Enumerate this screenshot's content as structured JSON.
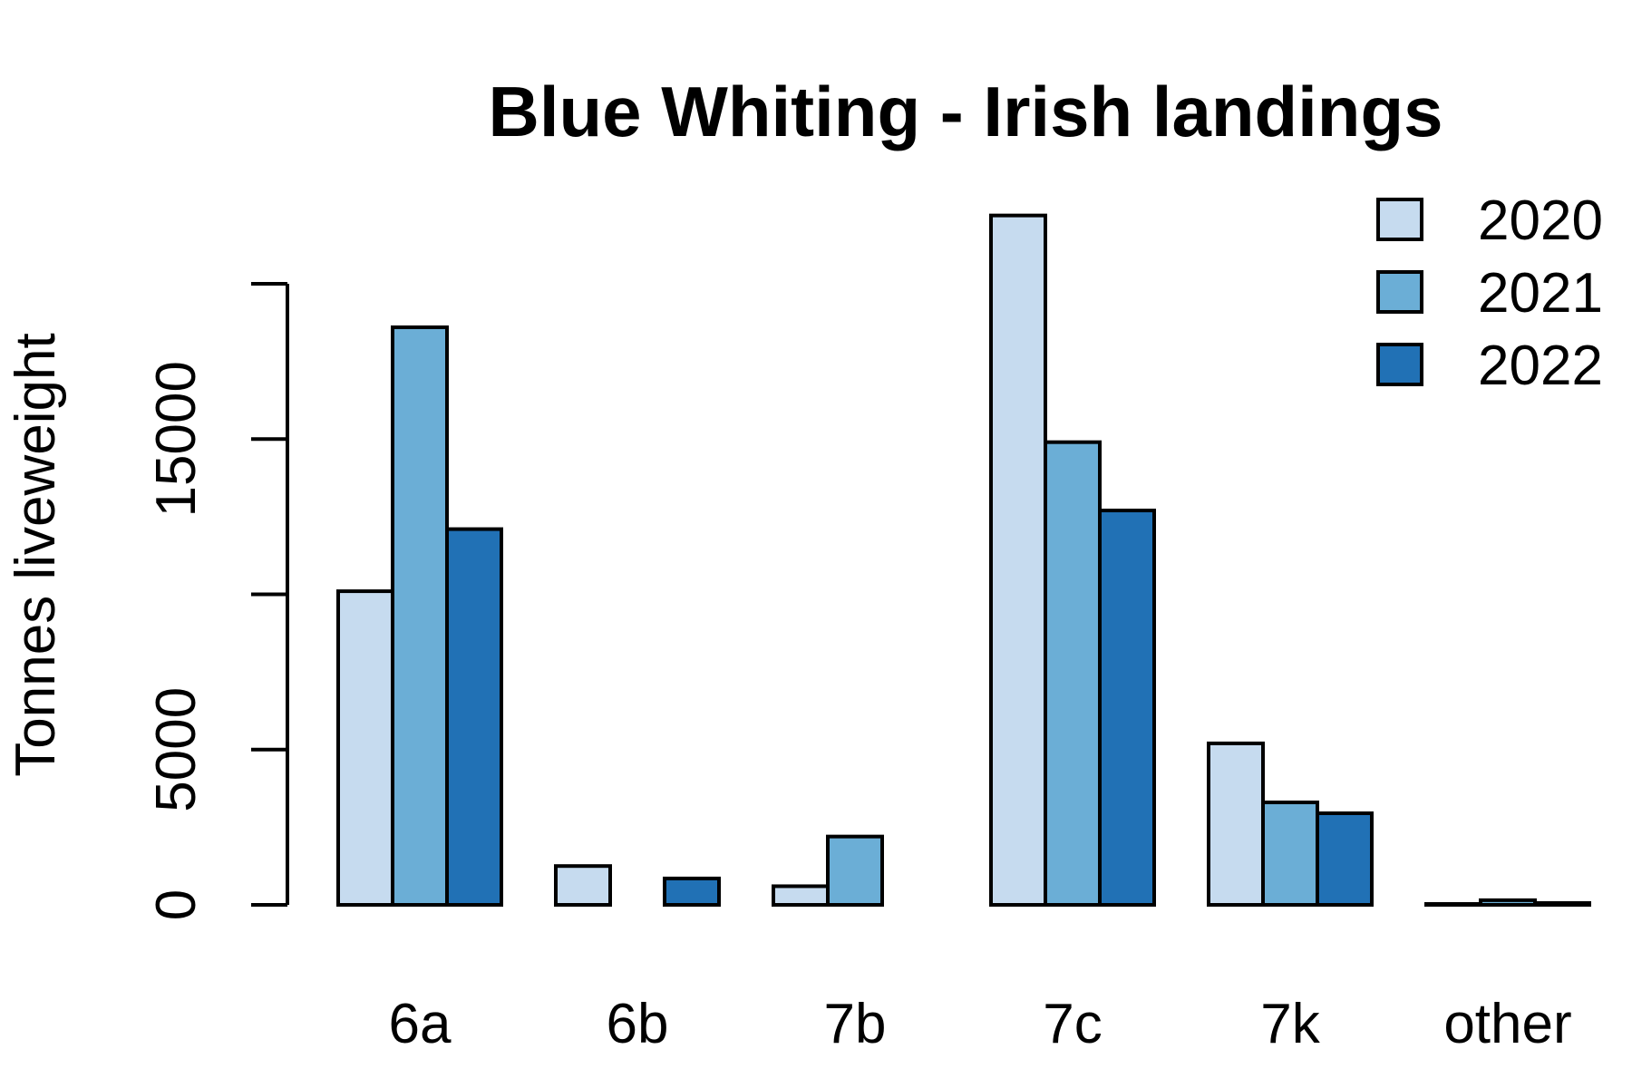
{
  "chart_data": {
    "type": "bar",
    "title": "Blue Whiting - Irish landings",
    "ylabel": "Tonnes liveweight",
    "xlabel": "",
    "categories": [
      "6a",
      "6b",
      "7b",
      "7c",
      "7k",
      "other"
    ],
    "series": [
      {
        "name": "2020",
        "color": "#c6dbef",
        "values": [
          10100,
          1250,
          600,
          22200,
          5200,
          30
        ]
      },
      {
        "name": "2021",
        "color": "#6baed6",
        "values": [
          18600,
          0,
          2200,
          14900,
          3300,
          150
        ]
      },
      {
        "name": "2022",
        "color": "#2171b5",
        "values": [
          12100,
          850,
          0,
          12700,
          2950,
          60
        ]
      }
    ],
    "yticks": [
      0,
      5000,
      10000,
      15000,
      20000
    ],
    "ytick_labels": [
      "0",
      "5000",
      "",
      "15000",
      ""
    ],
    "ylim": [
      0,
      22200
    ],
    "grid": false,
    "legend_position": "top-right"
  }
}
